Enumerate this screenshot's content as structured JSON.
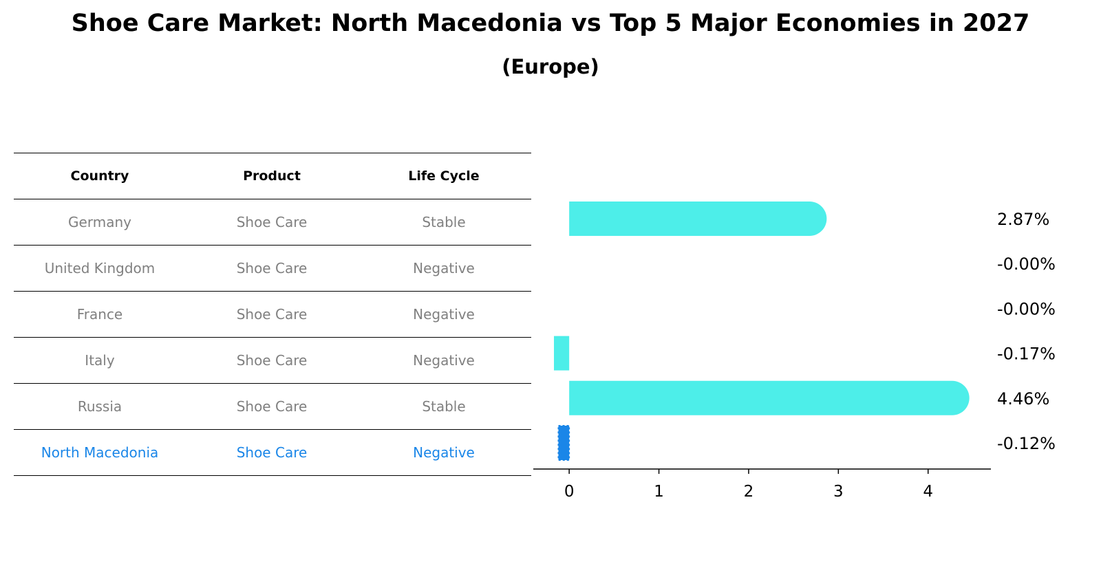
{
  "title": "Shoe Care Market: North Macedonia vs Top 5 Major Economies in 2027",
  "subtitle": "(Europe)",
  "colors": {
    "bar": "#4deee9",
    "highlight": "#1a86e8",
    "muted_text": "#808080"
  },
  "table": {
    "headers": [
      "Country",
      "Product",
      "Life Cycle"
    ],
    "rows": [
      {
        "country": "Germany",
        "product": "Shoe Care",
        "life_cycle": "Stable"
      },
      {
        "country": "United Kingdom",
        "product": "Shoe Care",
        "life_cycle": "Negative"
      },
      {
        "country": "France",
        "product": "Shoe Care",
        "life_cycle": "Negative"
      },
      {
        "country": "Italy",
        "product": "Shoe Care",
        "life_cycle": "Negative"
      },
      {
        "country": "Russia",
        "product": "Shoe Care",
        "life_cycle": "Stable"
      },
      {
        "country": "North Macedonia",
        "product": "Shoe Care",
        "life_cycle": "Negative",
        "highlight": true
      }
    ]
  },
  "chart_data": {
    "type": "bar",
    "orientation": "horizontal",
    "categories": [
      "Germany",
      "United Kingdom",
      "France",
      "Italy",
      "Russia",
      "North Macedonia"
    ],
    "values": [
      2.87,
      -0.0,
      -0.0,
      -0.17,
      4.46,
      -0.12
    ],
    "value_labels": [
      "2.87%",
      "-0.00%",
      "-0.00%",
      "-0.17%",
      "4.46%",
      "-0.12%"
    ],
    "highlight_index": 5,
    "xlim": [
      -0.4,
      4.7
    ],
    "xticks": [
      0,
      1,
      2,
      3,
      4
    ],
    "grid": false
  }
}
